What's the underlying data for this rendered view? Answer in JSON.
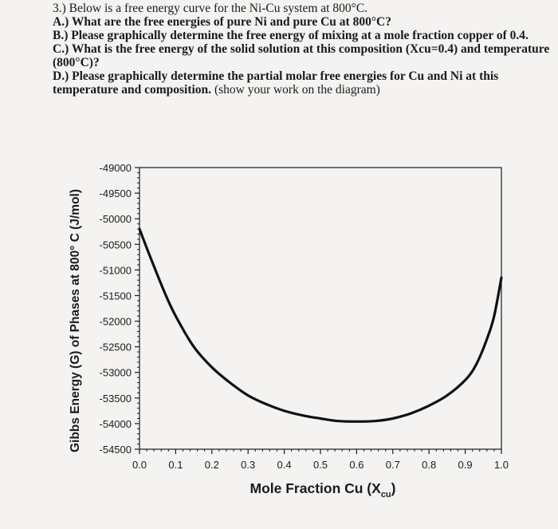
{
  "questions": {
    "q3": "3.) Below is a free energy curve for the Ni-Cu system at 800°C.",
    "qA": "A.) What are the free energies of pure Ni and pure Cu at 800°C?",
    "qB": "B.) Please graphically determine the free energy of mixing at a mole fraction copper of 0.4.",
    "qC": "C.) What is the free energy of the solid solution at this composition (Xcu=0.4) and temperature (800°C)?",
    "qD_bold": "D.) Please graphically determine the partial molar free energies for Cu and Ni at this temperature and composition.",
    "qD_normal": " (show your work on the diagram)"
  },
  "chart_data": {
    "type": "line",
    "xlabel_main": "Mole Fraction Cu (X",
    "xlabel_sub": "cu",
    "xlabel_close": ")",
    "ylabel": "Gibbs Energy (G) of Phases at 800° C (J/mol)",
    "xlim": [
      0.0,
      1.0
    ],
    "ylim": [
      -54500,
      -49000
    ],
    "x_ticks": [
      "0.0",
      "0.1",
      "0.2",
      "0.3",
      "0.4",
      "0.5",
      "0.6",
      "0.7",
      "0.8",
      "0.9",
      "1.0"
    ],
    "y_ticks": [
      "-49000",
      "-49500",
      "-50000",
      "-50500",
      "-51000",
      "-51500",
      "-52000",
      "-52500",
      "-53000",
      "-53500",
      "-54000",
      "-54500"
    ],
    "series": [
      {
        "color": "#111111",
        "x": [
          0.0,
          0.03,
          0.07,
          0.1,
          0.15,
          0.2,
          0.25,
          0.3,
          0.35,
          0.4,
          0.45,
          0.5,
          0.55,
          0.6,
          0.65,
          0.7,
          0.75,
          0.8,
          0.85,
          0.9,
          0.93,
          0.96,
          0.98,
          1.0
        ],
        "y": [
          -50200,
          -50750,
          -51450,
          -51900,
          -52500,
          -52900,
          -53200,
          -53450,
          -53620,
          -53750,
          -53840,
          -53900,
          -53950,
          -53960,
          -53950,
          -53900,
          -53800,
          -53650,
          -53450,
          -53150,
          -52850,
          -52350,
          -51900,
          -51150
        ]
      }
    ]
  }
}
